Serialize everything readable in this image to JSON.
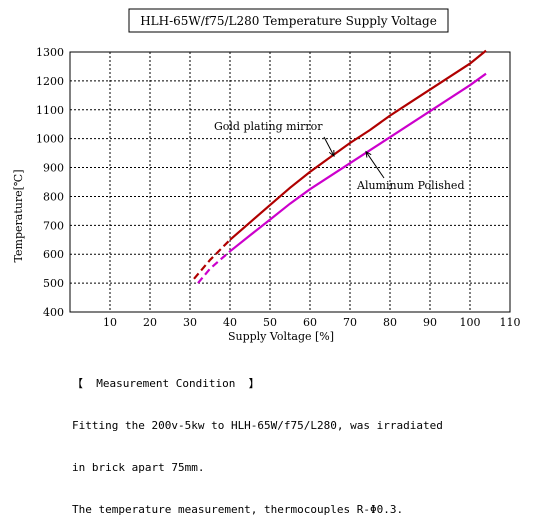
{
  "chart_data": {
    "type": "line",
    "title": "HLH-65W/f75/L280 Temperature Supply Voltage",
    "xlabel": "Supply Voltage [%]",
    "ylabel": "Temperature[℃]",
    "xlim": [
      0,
      110
    ],
    "ylim": [
      400,
      1300
    ],
    "x_ticks": [
      10,
      20,
      30,
      40,
      50,
      60,
      70,
      80,
      90,
      100,
      110
    ],
    "y_ticks": [
      400,
      500,
      600,
      700,
      800,
      900,
      1000,
      1100,
      1200,
      1300
    ],
    "grid": true,
    "series": [
      {
        "name": "Gold plating mirror",
        "color": "#b00000",
        "dashed_until_x": 40,
        "x": [
          31,
          35,
          40,
          45,
          50,
          55,
          60,
          65,
          70,
          75,
          80,
          85,
          90,
          95,
          100,
          104
        ],
        "y": [
          515,
          580,
          650,
          710,
          770,
          830,
          885,
          935,
          985,
          1030,
          1080,
          1125,
          1170,
          1215,
          1260,
          1305
        ]
      },
      {
        "name": "Aluminum Polished",
        "color": "#cc00cc",
        "dashed_until_x": 40,
        "x": [
          32,
          35,
          40,
          45,
          50,
          55,
          60,
          65,
          70,
          75,
          80,
          85,
          90,
          95,
          100,
          104
        ],
        "y": [
          500,
          550,
          610,
          665,
          720,
          775,
          825,
          870,
          915,
          960,
          1005,
          1050,
          1095,
          1140,
          1185,
          1225
        ]
      }
    ],
    "annotations": [
      {
        "text": "Gold plating mirror",
        "arrow_to": [
          66,
          940
        ]
      },
      {
        "text": "Aluminum Polished",
        "arrow_to": [
          74,
          955
        ]
      }
    ]
  },
  "notes": {
    "heading": "【  Measurement Condition  】",
    "line1": "Fitting the 200v-5kw to HLH-65W/f75/L280, was irradiated",
    "line2": "in brick apart 75mm.",
    "line3": "The temperature measurement, thermocouples R-Φ0.3."
  }
}
